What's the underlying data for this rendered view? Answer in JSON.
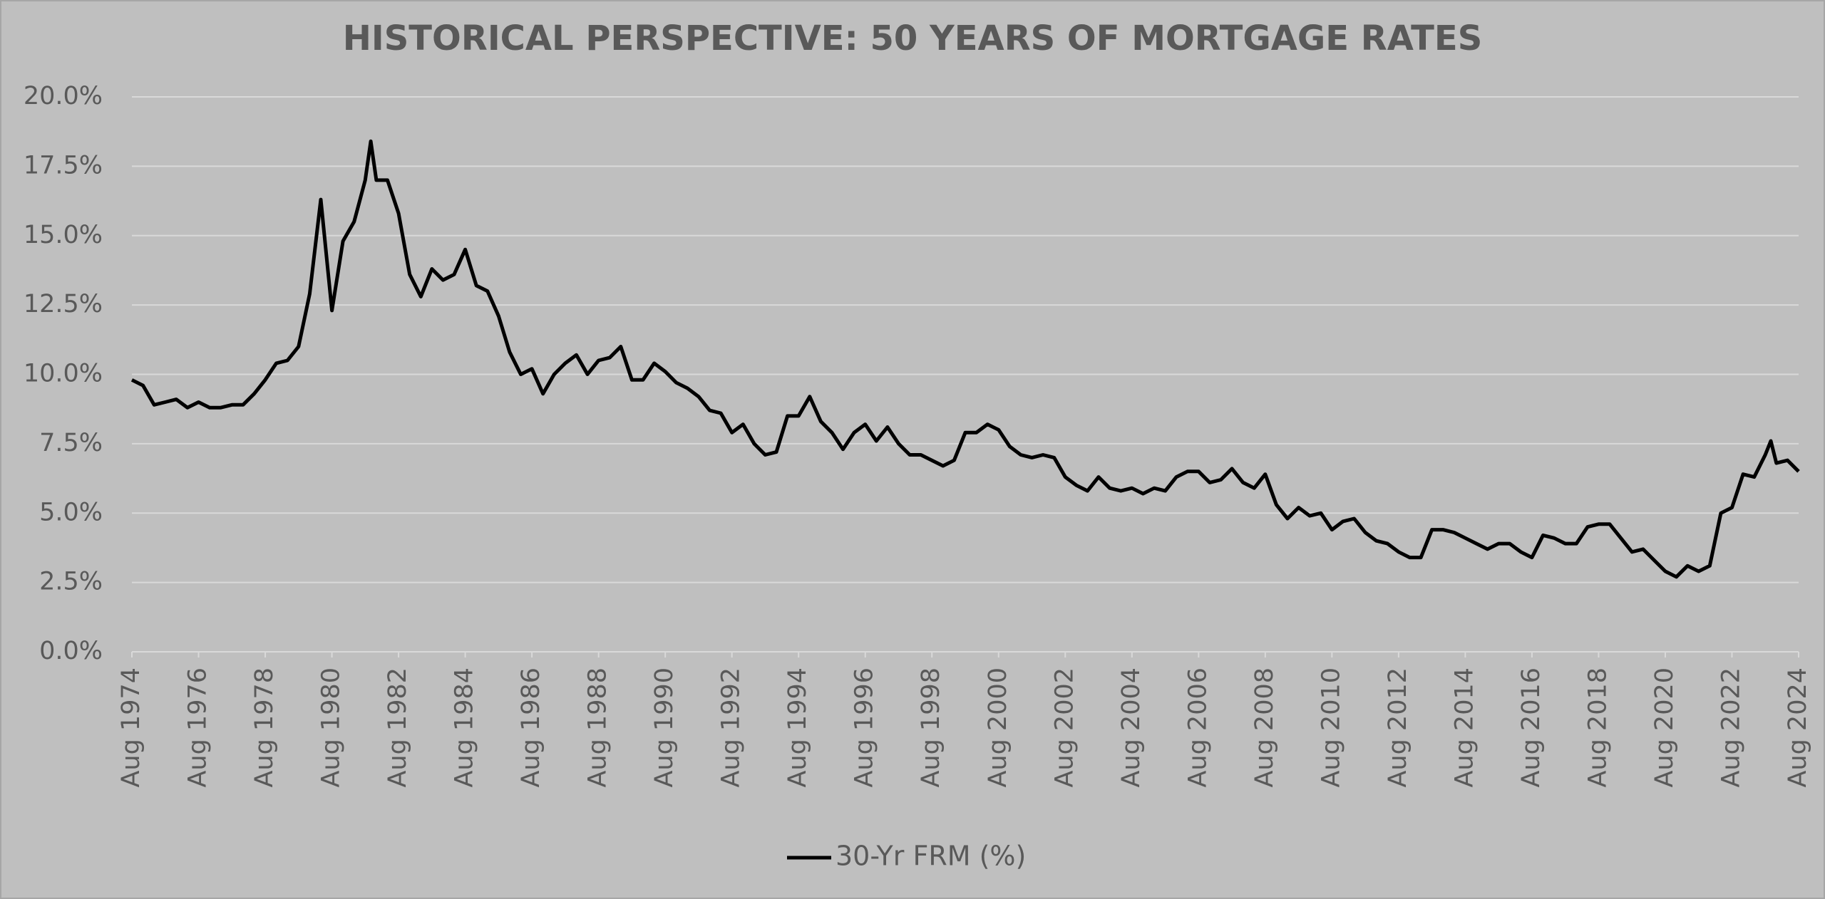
{
  "chart_data": {
    "type": "line",
    "title": "HISTORICAL PERSPECTIVE: 50 YEARS OF MORTGAGE RATES",
    "x": [
      "1974-08",
      "1974-12",
      "1975-04",
      "1975-08",
      "1975-12",
      "1976-04",
      "1976-08",
      "1976-12",
      "1977-04",
      "1977-08",
      "1977-12",
      "1978-04",
      "1978-08",
      "1978-12",
      "1979-04",
      "1979-08",
      "1979-12",
      "1980-04",
      "1980-08",
      "1980-12",
      "1981-04",
      "1981-08",
      "1981-10",
      "1981-12",
      "1982-04",
      "1982-08",
      "1982-12",
      "1983-04",
      "1983-08",
      "1983-12",
      "1984-04",
      "1984-08",
      "1984-12",
      "1985-04",
      "1985-08",
      "1985-12",
      "1986-04",
      "1986-08",
      "1986-12",
      "1987-04",
      "1987-08",
      "1987-12",
      "1988-04",
      "1988-08",
      "1988-12",
      "1989-04",
      "1989-08",
      "1989-12",
      "1990-04",
      "1990-08",
      "1990-12",
      "1991-04",
      "1991-08",
      "1991-12",
      "1992-04",
      "1992-08",
      "1992-12",
      "1993-04",
      "1993-08",
      "1993-12",
      "1994-04",
      "1994-08",
      "1994-12",
      "1995-04",
      "1995-08",
      "1995-12",
      "1996-04",
      "1996-08",
      "1996-12",
      "1997-04",
      "1997-08",
      "1997-12",
      "1998-04",
      "1998-08",
      "1998-12",
      "1999-04",
      "1999-08",
      "1999-12",
      "2000-04",
      "2000-08",
      "2000-12",
      "2001-04",
      "2001-08",
      "2001-12",
      "2002-04",
      "2002-08",
      "2002-12",
      "2003-04",
      "2003-08",
      "2003-12",
      "2004-04",
      "2004-08",
      "2004-12",
      "2005-04",
      "2005-08",
      "2005-12",
      "2006-04",
      "2006-08",
      "2006-12",
      "2007-04",
      "2007-08",
      "2007-12",
      "2008-04",
      "2008-08",
      "2008-12",
      "2009-04",
      "2009-08",
      "2009-12",
      "2010-04",
      "2010-08",
      "2010-12",
      "2011-04",
      "2011-08",
      "2011-12",
      "2012-04",
      "2012-08",
      "2012-12",
      "2013-04",
      "2013-08",
      "2013-12",
      "2014-04",
      "2014-08",
      "2014-12",
      "2015-04",
      "2015-08",
      "2015-12",
      "2016-04",
      "2016-08",
      "2016-12",
      "2017-04",
      "2017-08",
      "2017-12",
      "2018-04",
      "2018-08",
      "2018-12",
      "2019-04",
      "2019-08",
      "2019-12",
      "2020-04",
      "2020-08",
      "2020-12",
      "2021-04",
      "2021-08",
      "2021-12",
      "2022-04",
      "2022-08",
      "2022-12",
      "2023-04",
      "2023-08",
      "2023-10",
      "2023-12",
      "2024-04",
      "2024-08"
    ],
    "series": [
      {
        "name": "30-Yr FRM (%)",
        "color": "#000000",
        "values": [
          9.8,
          9.6,
          8.9,
          9.0,
          9.1,
          8.8,
          9.0,
          8.8,
          8.8,
          8.9,
          8.9,
          9.3,
          9.8,
          10.4,
          10.5,
          11.0,
          12.9,
          16.3,
          12.3,
          14.8,
          15.5,
          17.0,
          18.4,
          17.0,
          17.0,
          15.8,
          13.6,
          12.8,
          13.8,
          13.4,
          13.6,
          14.5,
          13.2,
          13.0,
          12.1,
          10.8,
          10.0,
          10.2,
          9.3,
          10.0,
          10.4,
          10.7,
          10.0,
          10.5,
          10.6,
          11.0,
          9.8,
          9.8,
          10.4,
          10.1,
          9.7,
          9.5,
          9.2,
          8.7,
          8.6,
          7.9,
          8.2,
          7.5,
          7.1,
          7.2,
          8.5,
          8.5,
          9.2,
          8.3,
          7.9,
          7.3,
          7.9,
          8.2,
          7.6,
          8.1,
          7.5,
          7.1,
          7.1,
          6.9,
          6.7,
          6.9,
          7.9,
          7.9,
          8.2,
          8.0,
          7.4,
          7.1,
          7.0,
          7.1,
          7.0,
          6.3,
          6.0,
          5.8,
          6.3,
          5.9,
          5.8,
          5.9,
          5.7,
          5.9,
          5.8,
          6.3,
          6.5,
          6.5,
          6.1,
          6.2,
          6.6,
          6.1,
          5.9,
          6.4,
          5.3,
          4.8,
          5.2,
          4.9,
          5.0,
          4.4,
          4.7,
          4.8,
          4.3,
          4.0,
          3.9,
          3.6,
          3.4,
          3.4,
          4.4,
          4.4,
          4.3,
          4.1,
          3.9,
          3.7,
          3.9,
          3.9,
          3.6,
          3.4,
          4.2,
          4.1,
          3.9,
          3.9,
          4.5,
          4.6,
          4.6,
          4.1,
          3.6,
          3.7,
          3.3,
          2.9,
          2.7,
          3.1,
          2.9,
          3.1,
          5.0,
          5.2,
          6.4,
          6.3,
          7.1,
          7.6,
          6.8,
          6.9,
          6.5
        ]
      }
    ],
    "xlim": [
      "1974-08",
      "2024-08"
    ],
    "xticks": [
      {
        "value": "1974-08",
        "label": "Aug 1974"
      },
      {
        "value": "1976-08",
        "label": "Aug 1976"
      },
      {
        "value": "1978-08",
        "label": "Aug 1978"
      },
      {
        "value": "1980-08",
        "label": "Aug 1980"
      },
      {
        "value": "1982-08",
        "label": "Aug 1982"
      },
      {
        "value": "1984-08",
        "label": "Aug 1984"
      },
      {
        "value": "1986-08",
        "label": "Aug 1986"
      },
      {
        "value": "1988-08",
        "label": "Aug 1988"
      },
      {
        "value": "1990-08",
        "label": "Aug 1990"
      },
      {
        "value": "1992-08",
        "label": "Aug 1992"
      },
      {
        "value": "1994-08",
        "label": "Aug 1994"
      },
      {
        "value": "1996-08",
        "label": "Aug 1996"
      },
      {
        "value": "1998-08",
        "label": "Aug 1998"
      },
      {
        "value": "2000-08",
        "label": "Aug 2000"
      },
      {
        "value": "2002-08",
        "label": "Aug 2002"
      },
      {
        "value": "2004-08",
        "label": "Aug 2004"
      },
      {
        "value": "2006-08",
        "label": "Aug 2006"
      },
      {
        "value": "2008-08",
        "label": "Aug 2008"
      },
      {
        "value": "2010-08",
        "label": "Aug 2010"
      },
      {
        "value": "2012-08",
        "label": "Aug 2012"
      },
      {
        "value": "2014-08",
        "label": "Aug 2014"
      },
      {
        "value": "2016-08",
        "label": "Aug 2016"
      },
      {
        "value": "2018-08",
        "label": "Aug 2018"
      },
      {
        "value": "2020-08",
        "label": "Aug 2020"
      },
      {
        "value": "2022-08",
        "label": "Aug 2022"
      },
      {
        "value": "2024-08",
        "label": "Aug 2024"
      }
    ],
    "ylim": [
      0,
      20
    ],
    "yticks": [
      {
        "value": 0,
        "label": "0.0%"
      },
      {
        "value": 2.5,
        "label": "2.5%"
      },
      {
        "value": 5,
        "label": "5.0%"
      },
      {
        "value": 7.5,
        "label": "7.5%"
      },
      {
        "value": 10,
        "label": "10.0%"
      },
      {
        "value": 12.5,
        "label": "12.5%"
      },
      {
        "value": 15,
        "label": "15.0%"
      },
      {
        "value": 17.5,
        "label": "17.5%"
      },
      {
        "value": 20,
        "label": "20.0%"
      }
    ],
    "grid": true,
    "legend": "bottom"
  }
}
